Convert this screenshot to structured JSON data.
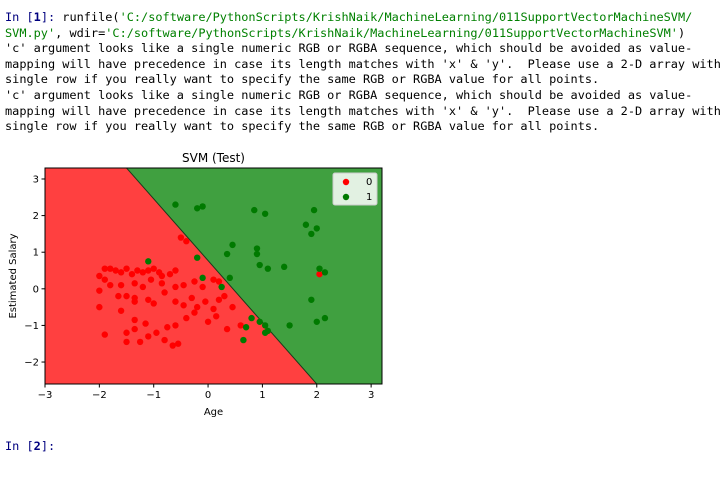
{
  "console": {
    "prompt1_prefix": "In [",
    "prompt1_number": "1",
    "prompt1_suffix": "]: ",
    "call_fn": "runfile(",
    "call_path": "'C:/software/PythonScripts/KrishNaik/MachineLearning/011SupportVectorMachineSVM/",
    "call_path_end": "SVM.py'",
    "call_wdir_kw": ", wdir=",
    "call_wdir": "'C:/software/PythonScripts/KrishNaik/MachineLearning/011SupportVectorMachineSVM'",
    "call_close": ")",
    "warning_lines": [
      "'c' argument looks like a single numeric RGB or RGBA sequence, which should be avoided as value-",
      "mapping will have precedence in case its length matches with 'x' & 'y'.  Please use a 2-D array with a",
      "single row if you really want to specify the same RGB or RGBA value for all points.",
      "'c' argument looks like a single numeric RGB or RGBA sequence, which should be avoided as value-",
      "mapping will have precedence in case its length matches with 'x' & 'y'.  Please use a 2-D array with a",
      "single row if you really want to specify the same RGB or RGBA value for all points."
    ],
    "prompt2_prefix": "In [",
    "prompt2_number": "2",
    "prompt2_suffix": "]: "
  },
  "colors": {
    "prompt": "#00007f",
    "string": "#008000",
    "region_0": "#ff4040",
    "region_1": "#40a040",
    "point_0": "#ff0000",
    "point_1": "#007a00"
  },
  "chart_data": {
    "type": "scatter",
    "title": "SVM (Test)",
    "xlabel": "Age",
    "ylabel": "Estimated Salary",
    "xlim": [
      -3.0,
      3.2
    ],
    "ylim": [
      -2.6,
      3.3
    ],
    "xticks": [
      -3,
      -2,
      -1,
      0,
      1,
      2,
      3
    ],
    "yticks": [
      -2,
      -1,
      0,
      1,
      2,
      3
    ],
    "legend_position": "top-right",
    "decision_boundary": {
      "x1": -1.5,
      "y1": 3.3,
      "x2": 2.0,
      "y2": -2.6
    },
    "series": [
      {
        "name": "0",
        "color": "#ff0000",
        "points": [
          [
            -1.9,
            0.55
          ],
          [
            -1.8,
            0.55
          ],
          [
            -1.7,
            0.5
          ],
          [
            -1.6,
            0.45
          ],
          [
            -1.5,
            0.55
          ],
          [
            -1.4,
            0.4
          ],
          [
            -1.3,
            0.5
          ],
          [
            -1.2,
            0.45
          ],
          [
            -1.1,
            0.5
          ],
          [
            -1.0,
            0.55
          ],
          [
            -0.9,
            0.45
          ],
          [
            -0.85,
            0.35
          ],
          [
            -0.7,
            0.4
          ],
          [
            -0.6,
            0.5
          ],
          [
            -2.0,
            0.35
          ],
          [
            -1.9,
            0.25
          ],
          [
            -1.8,
            0.1
          ],
          [
            -2.0,
            -0.05
          ],
          [
            -1.6,
            0.1
          ],
          [
            -1.35,
            0.15
          ],
          [
            -1.2,
            0.05
          ],
          [
            -1.05,
            0.25
          ],
          [
            -0.85,
            0.15
          ],
          [
            -0.6,
            0.05
          ],
          [
            -0.45,
            0.1
          ],
          [
            -0.25,
            0.2
          ],
          [
            -0.1,
            0.05
          ],
          [
            0.1,
            0.25
          ],
          [
            0.2,
            0.2
          ],
          [
            -1.65,
            -0.2
          ],
          [
            -1.5,
            -0.2
          ],
          [
            -1.35,
            -0.35
          ],
          [
            -1.1,
            -0.3
          ],
          [
            -1.0,
            -0.4
          ],
          [
            -0.8,
            -0.1
          ],
          [
            -0.6,
            -0.35
          ],
          [
            -0.45,
            -0.45
          ],
          [
            -0.3,
            -0.25
          ],
          [
            -0.2,
            -0.5
          ],
          [
            -0.05,
            -0.35
          ],
          [
            0.1,
            -0.55
          ],
          [
            0.2,
            -0.3
          ],
          [
            0.3,
            -0.2
          ],
          [
            0.45,
            -0.5
          ],
          [
            -2.0,
            -0.5
          ],
          [
            -1.6,
            -0.6
          ],
          [
            -1.35,
            -0.85
          ],
          [
            -1.15,
            -0.95
          ],
          [
            -0.95,
            -1.2
          ],
          [
            -0.75,
            -1.05
          ],
          [
            -0.6,
            -1.0
          ],
          [
            -0.4,
            -0.8
          ],
          [
            -0.25,
            -0.65
          ],
          [
            0.0,
            -0.9
          ],
          [
            0.15,
            -0.75
          ],
          [
            0.35,
            -1.1
          ],
          [
            0.6,
            -1.0
          ],
          [
            -1.9,
            -1.25
          ],
          [
            -1.5,
            -1.2
          ],
          [
            -1.35,
            -1.1
          ],
          [
            -1.1,
            -1.3
          ],
          [
            -0.8,
            -1.4
          ],
          [
            -0.65,
            -1.55
          ],
          [
            -0.55,
            -1.5
          ],
          [
            -1.5,
            -1.45
          ],
          [
            -1.25,
            -1.45
          ],
          [
            -0.5,
            1.4
          ],
          [
            -0.4,
            1.3
          ],
          [
            -1.35,
            -0.25
          ],
          [
            2.05,
            0.4
          ]
        ]
      },
      {
        "name": "1",
        "color": "#007a00",
        "points": [
          [
            -0.6,
            2.3
          ],
          [
            -0.2,
            2.2
          ],
          [
            -0.1,
            2.25
          ],
          [
            0.85,
            2.15
          ],
          [
            1.05,
            2.05
          ],
          [
            1.8,
            1.75
          ],
          [
            1.95,
            2.15
          ],
          [
            2.0,
            1.65
          ],
          [
            1.9,
            1.5
          ],
          [
            0.45,
            1.2
          ],
          [
            0.9,
            1.1
          ],
          [
            0.35,
            0.95
          ],
          [
            0.9,
            0.95
          ],
          [
            0.95,
            0.65
          ],
          [
            1.1,
            0.55
          ],
          [
            1.4,
            0.6
          ],
          [
            2.05,
            0.55
          ],
          [
            2.15,
            0.45
          ],
          [
            1.9,
            -0.3
          ],
          [
            -1.1,
            0.75
          ],
          [
            -0.2,
            0.85
          ],
          [
            -0.1,
            0.3
          ],
          [
            0.25,
            0.05
          ],
          [
            0.4,
            0.3
          ],
          [
            0.8,
            -0.8
          ],
          [
            0.95,
            -0.9
          ],
          [
            1.05,
            -1.0
          ],
          [
            1.1,
            -1.15
          ],
          [
            1.5,
            -1.0
          ],
          [
            2.0,
            -0.9
          ],
          [
            2.15,
            -0.8
          ],
          [
            0.7,
            -1.05
          ],
          [
            0.65,
            -1.4
          ],
          [
            1.05,
            -1.2
          ]
        ]
      }
    ]
  }
}
